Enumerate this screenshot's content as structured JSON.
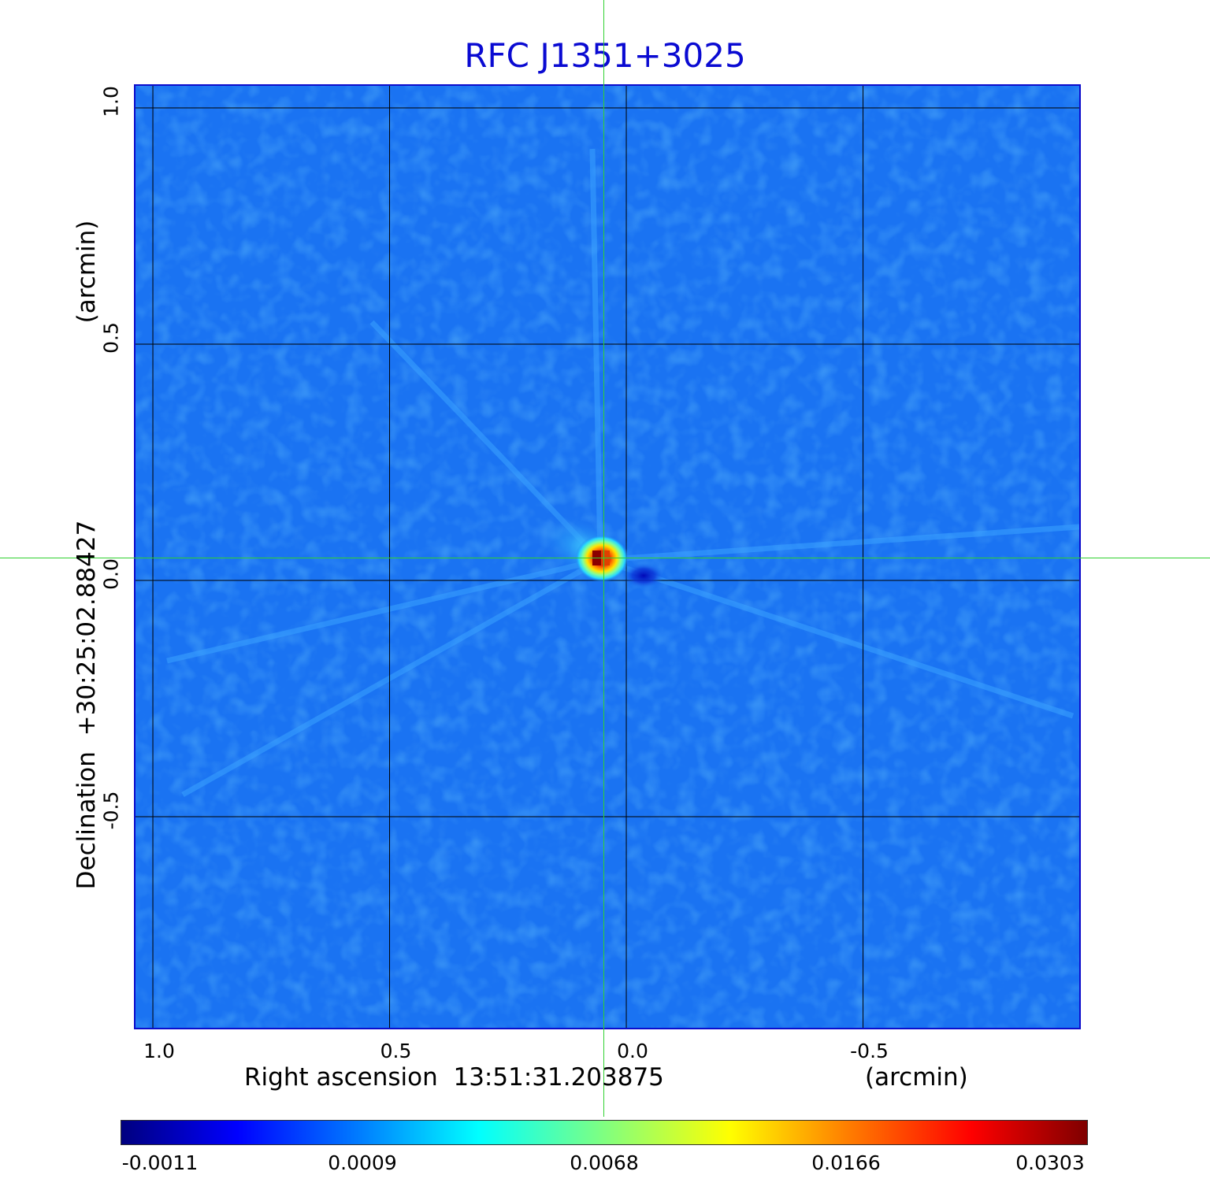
{
  "chart_data": {
    "type": "heatmap",
    "title": "RFC J1351+3025",
    "xlabel": "Right ascension  13:51:31.203875",
    "xunit": "(arcmin)",
    "ylabel": "Declination  +30:25:02.88427",
    "yunit": "(arcmin)",
    "x_range": [
      1.04,
      -0.96
    ],
    "y_range": [
      -0.95,
      1.05
    ],
    "x_ticks": [
      1.0,
      0.5,
      0.0,
      -0.5
    ],
    "x_tick_labels": [
      "1.0",
      "0.5",
      "0.0",
      "-0.5"
    ],
    "y_ticks": [
      1.0,
      0.5,
      0.0,
      -0.5
    ],
    "y_tick_labels": [
      "1.0",
      "0.5",
      "0.0",
      "-0.5"
    ],
    "grid": true,
    "colormap": "jet",
    "colorbar": {
      "min": -0.0011,
      "max": 0.0303,
      "tick_labels": [
        "-0.0011",
        "0.0009",
        "0.0068",
        "0.0166",
        "0.0303"
      ],
      "tick_fractions": [
        0.0,
        0.25,
        0.5,
        0.75,
        1.0
      ]
    },
    "crosshair": {
      "x": 0.05,
      "y": 0.05
    },
    "peak": {
      "x": 0.06,
      "y": 0.05,
      "value": 0.0303
    },
    "negative_lobe": {
      "x": -0.04,
      "y": 0.01,
      "value": -0.0011
    }
  },
  "colors": {
    "title": "#0a0ad2",
    "frame": "#0c0ccc",
    "background_field": "#1a73f2",
    "crosshair": "#2fd12f",
    "grid": "#000000"
  }
}
